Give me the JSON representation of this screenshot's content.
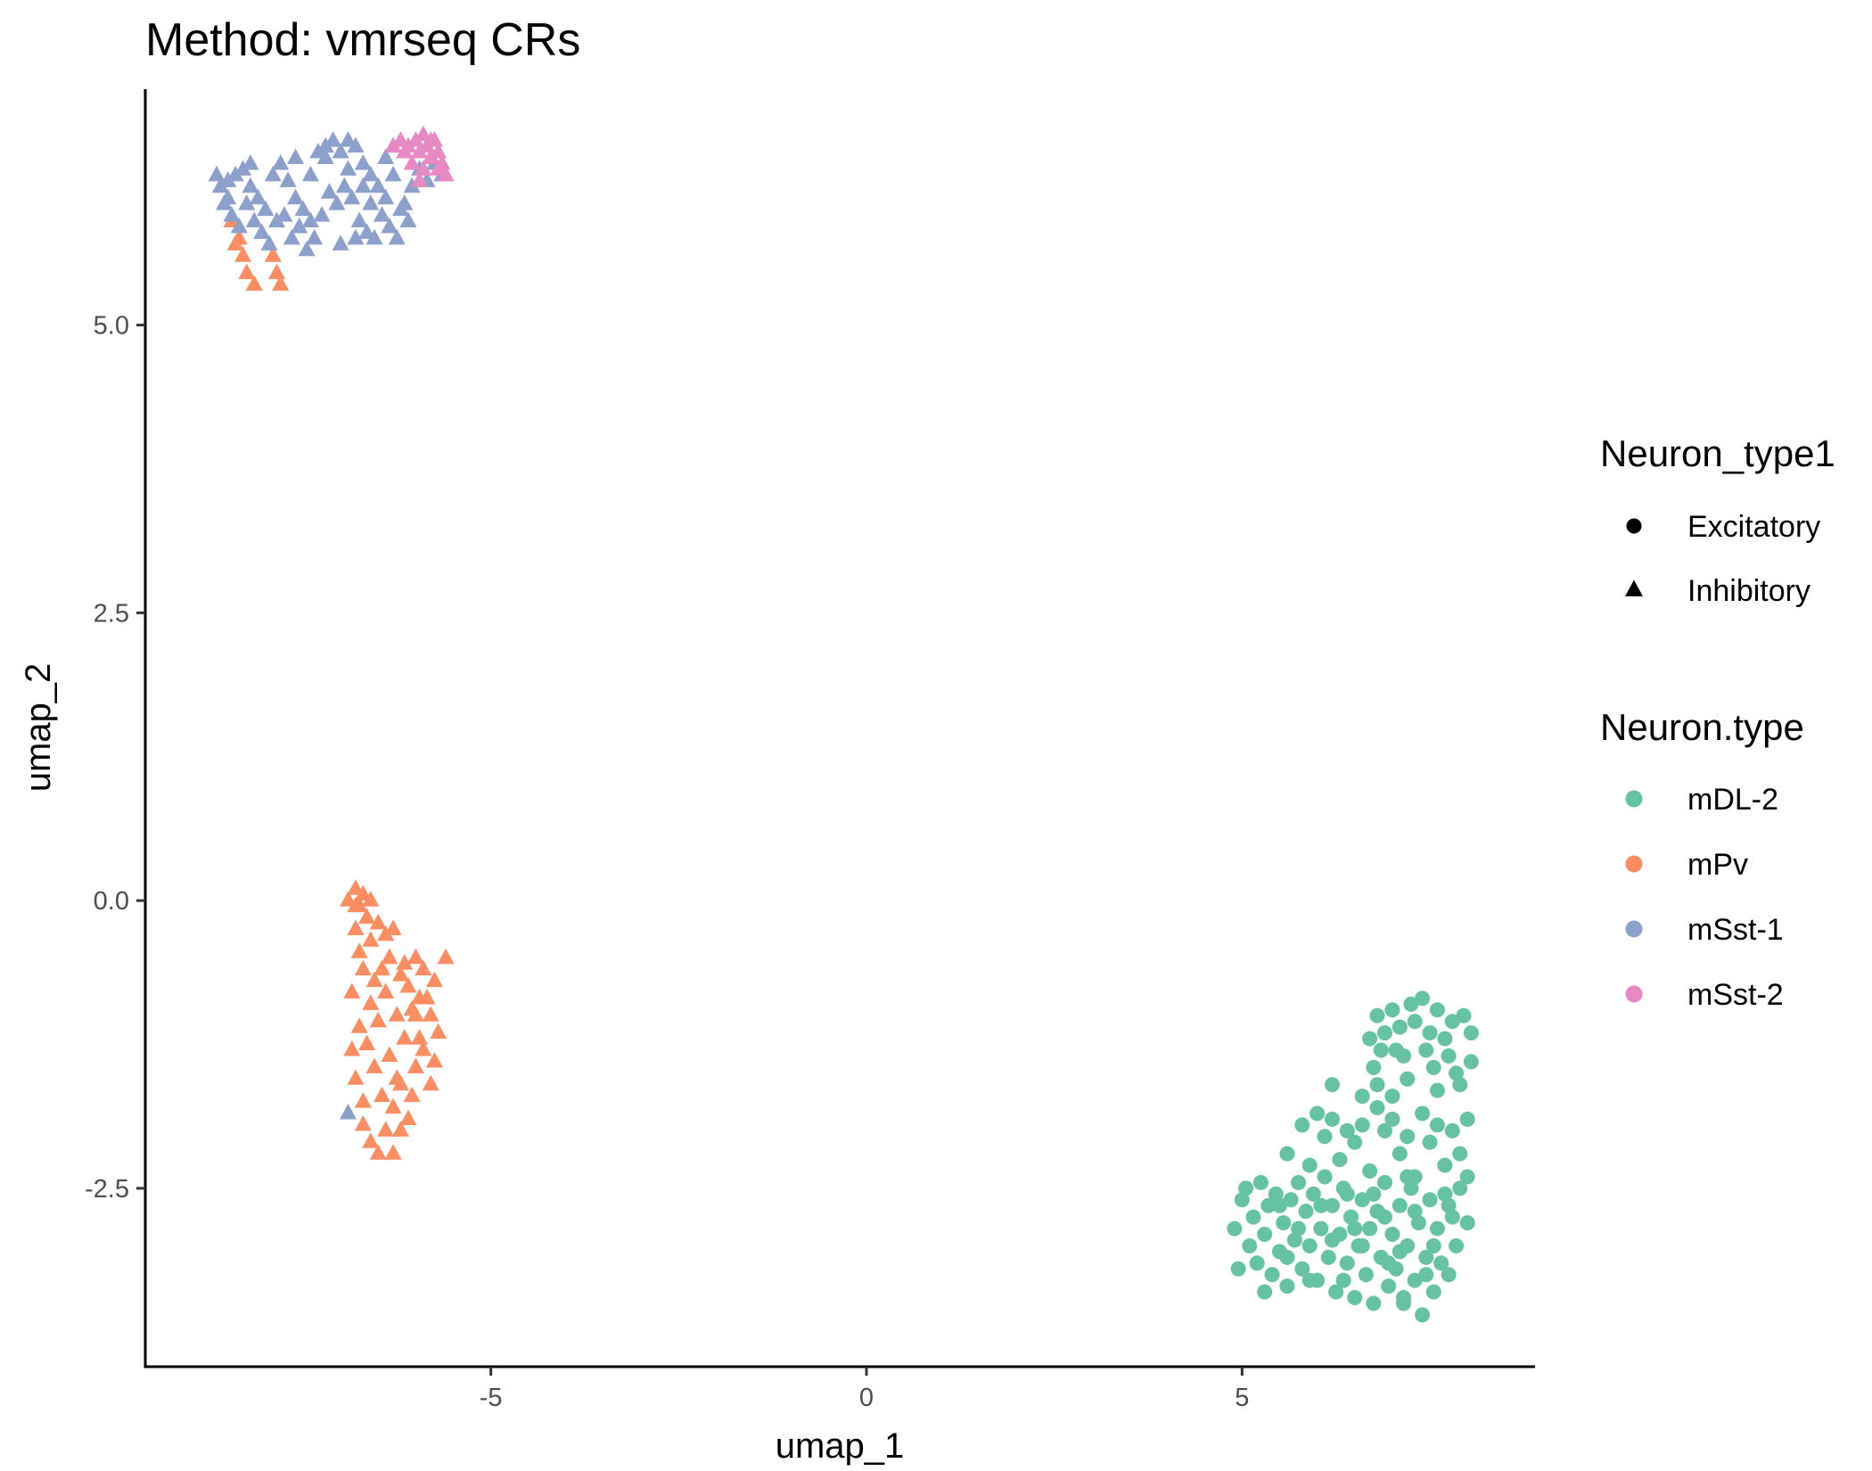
{
  "chart_data": {
    "type": "scatter",
    "title": "Method: vmrseq CRs",
    "xlabel": "umap_1",
    "ylabel": "umap_2",
    "xlim": [
      -9.6,
      8.9
    ],
    "ylim": [
      -4.05,
      7.05
    ],
    "x_ticks": [
      -5,
      0,
      5
    ],
    "x_tick_labels": [
      "-5",
      "0",
      "5"
    ],
    "y_ticks": [
      -2.5,
      0.0,
      2.5,
      5.0
    ],
    "y_tick_labels": [
      "-2.5",
      "0.0",
      "2.5",
      "5.0"
    ],
    "grid": false,
    "shape_legend": {
      "title": "Neuron_type1",
      "items": [
        {
          "label": "Excitatory",
          "shape": "circle"
        },
        {
          "label": "Inhibitory",
          "shape": "triangle"
        }
      ]
    },
    "color_legend": {
      "title": "Neuron.type",
      "items": [
        {
          "label": "mDL-2",
          "color": "#66c2a5"
        },
        {
          "label": "mPv",
          "color": "#fc8d62"
        },
        {
          "label": "mSst-1",
          "color": "#8da0cb"
        },
        {
          "label": "mSst-2",
          "color": "#e78ac3"
        }
      ]
    },
    "legend_position": "right",
    "series": [
      {
        "name": "mDL-2",
        "shape": "circle",
        "color": "#66c2a5",
        "points": [
          [
            4.9,
            -2.85
          ],
          [
            5.0,
            -2.6
          ],
          [
            5.1,
            -3.0
          ],
          [
            5.15,
            -2.75
          ],
          [
            5.2,
            -3.15
          ],
          [
            5.25,
            -2.45
          ],
          [
            5.3,
            -2.9
          ],
          [
            5.35,
            -2.65
          ],
          [
            5.4,
            -3.25
          ],
          [
            5.45,
            -2.55
          ],
          [
            5.5,
            -3.05
          ],
          [
            5.55,
            -2.8
          ],
          [
            5.6,
            -3.35
          ],
          [
            5.65,
            -2.6
          ],
          [
            5.7,
            -2.95
          ],
          [
            5.75,
            -2.45
          ],
          [
            5.8,
            -3.2
          ],
          [
            5.85,
            -2.7
          ],
          [
            5.9,
            -3.0
          ],
          [
            5.95,
            -2.55
          ],
          [
            6.0,
            -3.3
          ],
          [
            6.05,
            -2.85
          ],
          [
            6.1,
            -2.4
          ],
          [
            6.15,
            -3.1
          ],
          [
            6.2,
            -2.65
          ],
          [
            6.25,
            -3.4
          ],
          [
            6.3,
            -2.9
          ],
          [
            6.35,
            -2.5
          ],
          [
            6.4,
            -3.15
          ],
          [
            6.45,
            -2.75
          ],
          [
            6.5,
            -3.45
          ],
          [
            6.55,
            -3.0
          ],
          [
            6.6,
            -2.6
          ],
          [
            6.65,
            -3.25
          ],
          [
            6.7,
            -2.85
          ],
          [
            6.75,
            -3.5
          ],
          [
            6.8,
            -2.7
          ],
          [
            6.85,
            -3.1
          ],
          [
            6.9,
            -2.45
          ],
          [
            6.95,
            -3.35
          ],
          [
            7.0,
            -2.9
          ],
          [
            7.05,
            -3.2
          ],
          [
            7.1,
            -2.65
          ],
          [
            7.15,
            -3.45
          ],
          [
            7.2,
            -3.0
          ],
          [
            7.25,
            -2.5
          ],
          [
            7.3,
            -3.3
          ],
          [
            7.35,
            -2.8
          ],
          [
            7.4,
            -3.6
          ],
          [
            7.45,
            -3.1
          ],
          [
            7.5,
            -2.6
          ],
          [
            7.55,
            -3.4
          ],
          [
            7.6,
            -2.85
          ],
          [
            7.65,
            -3.15
          ],
          [
            7.7,
            -2.55
          ],
          [
            7.75,
            -3.25
          ],
          [
            7.8,
            -2.75
          ],
          [
            7.85,
            -3.0
          ],
          [
            7.9,
            -2.5
          ],
          [
            8.0,
            -2.8
          ],
          [
            5.6,
            -2.2
          ],
          [
            5.9,
            -2.3
          ],
          [
            6.1,
            -2.05
          ],
          [
            6.3,
            -2.25
          ],
          [
            6.5,
            -2.1
          ],
          [
            6.7,
            -2.35
          ],
          [
            6.9,
            -2.0
          ],
          [
            7.1,
            -2.2
          ],
          [
            7.3,
            -2.4
          ],
          [
            7.5,
            -2.1
          ],
          [
            7.7,
            -2.3
          ],
          [
            7.9,
            -2.2
          ],
          [
            5.8,
            -1.95
          ],
          [
            6.0,
            -1.85
          ],
          [
            6.2,
            -1.9
          ],
          [
            6.4,
            -2.0
          ],
          [
            6.6,
            -1.95
          ],
          [
            6.8,
            -1.8
          ],
          [
            7.0,
            -1.9
          ],
          [
            7.2,
            -2.05
          ],
          [
            7.4,
            -1.85
          ],
          [
            7.6,
            -1.95
          ],
          [
            7.8,
            -2.0
          ],
          [
            8.0,
            -1.9
          ],
          [
            6.2,
            -1.6
          ],
          [
            6.6,
            -1.7
          ],
          [
            6.8,
            -1.6
          ],
          [
            7.0,
            -1.7
          ],
          [
            7.2,
            -1.55
          ],
          [
            7.6,
            -1.65
          ],
          [
            7.9,
            -1.6
          ],
          [
            6.75,
            -1.45
          ],
          [
            7.15,
            -1.35
          ],
          [
            7.55,
            -1.45
          ],
          [
            7.85,
            -1.5
          ],
          [
            8.05,
            -1.4
          ],
          [
            6.7,
            -1.2
          ],
          [
            6.8,
            -1.0
          ],
          [
            6.9,
            -1.15
          ],
          [
            7.0,
            -0.95
          ],
          [
            7.1,
            -1.1
          ],
          [
            7.3,
            -1.05
          ],
          [
            7.4,
            -0.85
          ],
          [
            7.5,
            -1.15
          ],
          [
            7.6,
            -0.95
          ],
          [
            7.7,
            -1.2
          ],
          [
            7.8,
            -1.05
          ],
          [
            7.95,
            -1.0
          ],
          [
            8.05,
            -1.15
          ],
          [
            7.25,
            -0.9
          ],
          [
            6.85,
            -1.3
          ],
          [
            7.05,
            -1.3
          ],
          [
            7.45,
            -1.3
          ],
          [
            7.75,
            -1.35
          ],
          [
            4.95,
            -3.2
          ],
          [
            5.05,
            -2.5
          ],
          [
            5.3,
            -3.4
          ],
          [
            5.6,
            -3.1
          ],
          [
            5.9,
            -3.3
          ],
          [
            6.2,
            -2.95
          ],
          [
            6.4,
            -2.55
          ],
          [
            6.6,
            -3.0
          ],
          [
            6.9,
            -2.75
          ],
          [
            7.1,
            -3.05
          ],
          [
            7.3,
            -2.7
          ],
          [
            7.55,
            -3.0
          ],
          [
            7.75,
            -2.65
          ],
          [
            8.0,
            -2.4
          ],
          [
            6.5,
            -2.85
          ],
          [
            6.75,
            -2.55
          ],
          [
            6.95,
            -3.15
          ],
          [
            7.2,
            -2.4
          ],
          [
            5.5,
            -2.65
          ],
          [
            5.75,
            -2.85
          ],
          [
            6.05,
            -2.65
          ],
          [
            6.35,
            -3.3
          ],
          [
            7.15,
            -3.5
          ],
          [
            7.45,
            -3.25
          ]
        ]
      },
      {
        "name": "mPv",
        "shape": "triangle",
        "color": "#fc8d62",
        "points": [
          [
            -6.8,
            0.1
          ],
          [
            -6.75,
            -0.05
          ],
          [
            -6.7,
            0.05
          ],
          [
            -6.65,
            -0.15
          ],
          [
            -6.8,
            -0.25
          ],
          [
            -6.6,
            -0.35
          ],
          [
            -6.75,
            -0.45
          ],
          [
            -6.5,
            -0.2
          ],
          [
            -6.4,
            -0.3
          ],
          [
            -6.3,
            -0.25
          ],
          [
            -6.35,
            -0.5
          ],
          [
            -6.2,
            -0.65
          ],
          [
            -6.1,
            -0.75
          ],
          [
            -6.0,
            -0.5
          ],
          [
            -5.9,
            -0.6
          ],
          [
            -5.85,
            -0.85
          ],
          [
            -5.8,
            -1.0
          ],
          [
            -5.75,
            -0.7
          ],
          [
            -5.6,
            -0.5
          ],
          [
            -5.7,
            -1.15
          ],
          [
            -5.75,
            -1.4
          ],
          [
            -5.8,
            -1.6
          ],
          [
            -5.9,
            -1.3
          ],
          [
            -6.0,
            -1.45
          ],
          [
            -6.05,
            -1.7
          ],
          [
            -6.1,
            -1.9
          ],
          [
            -6.2,
            -1.6
          ],
          [
            -6.3,
            -1.8
          ],
          [
            -6.4,
            -2.0
          ],
          [
            -6.5,
            -2.2
          ],
          [
            -6.6,
            -2.1
          ],
          [
            -6.7,
            -1.95
          ],
          [
            -6.3,
            -2.2
          ],
          [
            -6.2,
            -2.0
          ],
          [
            -6.45,
            -1.7
          ],
          [
            -6.55,
            -1.45
          ],
          [
            -6.65,
            -1.25
          ],
          [
            -6.75,
            -1.1
          ],
          [
            -6.85,
            -1.3
          ],
          [
            -6.8,
            -1.55
          ],
          [
            -6.7,
            -1.75
          ],
          [
            -6.6,
            -0.9
          ],
          [
            -6.5,
            -1.05
          ],
          [
            -6.4,
            -0.8
          ],
          [
            -6.25,
            -1.0
          ],
          [
            -6.15,
            -1.2
          ],
          [
            -6.0,
            -1.0
          ],
          [
            -5.95,
            -1.2
          ],
          [
            -6.35,
            -1.35
          ],
          [
            -6.25,
            -1.55
          ],
          [
            -6.45,
            -0.6
          ],
          [
            -6.55,
            -0.7
          ],
          [
            -6.7,
            -0.6
          ],
          [
            -6.85,
            -0.8
          ],
          [
            -6.8,
            -0.05
          ],
          [
            -6.9,
            0.0
          ],
          [
            -6.6,
            0.0
          ],
          [
            -5.95,
            -0.85
          ],
          [
            -6.05,
            -0.95
          ],
          [
            -6.15,
            -0.55
          ],
          [
            -8.45,
            5.9
          ],
          [
            -8.35,
            5.75
          ],
          [
            -8.3,
            5.6
          ],
          [
            -8.25,
            5.45
          ],
          [
            -8.15,
            5.35
          ],
          [
            -7.9,
            5.6
          ],
          [
            -7.85,
            5.45
          ],
          [
            -7.8,
            5.35
          ],
          [
            -8.4,
            5.7
          ]
        ]
      },
      {
        "name": "mSst-1",
        "shape": "triangle",
        "color": "#8da0cb",
        "points": [
          [
            -8.6,
            6.2
          ],
          [
            -8.5,
            6.25
          ],
          [
            -8.4,
            6.3
          ],
          [
            -8.3,
            6.35
          ],
          [
            -8.2,
            6.2
          ],
          [
            -8.1,
            6.1
          ],
          [
            -8.0,
            6.0
          ],
          [
            -7.9,
            6.3
          ],
          [
            -7.8,
            6.4
          ],
          [
            -7.7,
            6.25
          ],
          [
            -7.6,
            6.1
          ],
          [
            -7.5,
            6.0
          ],
          [
            -7.4,
            5.9
          ],
          [
            -7.3,
            6.5
          ],
          [
            -7.2,
            6.55
          ],
          [
            -7.1,
            6.6
          ],
          [
            -7.0,
            6.5
          ],
          [
            -6.9,
            6.6
          ],
          [
            -6.8,
            6.55
          ],
          [
            -6.7,
            6.4
          ],
          [
            -6.6,
            6.3
          ],
          [
            -6.5,
            6.2
          ],
          [
            -6.4,
            6.1
          ],
          [
            -6.3,
            6.3
          ],
          [
            -6.2,
            6.0
          ],
          [
            -6.1,
            5.9
          ],
          [
            -8.55,
            6.05
          ],
          [
            -8.45,
            5.95
          ],
          [
            -8.35,
            5.85
          ],
          [
            -8.25,
            6.05
          ],
          [
            -8.15,
            5.9
          ],
          [
            -8.05,
            5.8
          ],
          [
            -7.95,
            5.7
          ],
          [
            -7.85,
            5.9
          ],
          [
            -7.75,
            5.95
          ],
          [
            -7.65,
            5.75
          ],
          [
            -7.55,
            5.85
          ],
          [
            -7.45,
            5.65
          ],
          [
            -7.35,
            5.75
          ],
          [
            -7.25,
            5.95
          ],
          [
            -7.15,
            6.15
          ],
          [
            -7.05,
            6.05
          ],
          [
            -6.95,
            6.2
          ],
          [
            -6.85,
            6.1
          ],
          [
            -6.75,
            5.9
          ],
          [
            -6.65,
            5.8
          ],
          [
            -6.55,
            5.75
          ],
          [
            -6.45,
            5.95
          ],
          [
            -6.35,
            5.85
          ],
          [
            -6.25,
            5.75
          ],
          [
            -6.15,
            6.05
          ],
          [
            -6.05,
            6.2
          ],
          [
            -5.95,
            6.35
          ],
          [
            -5.85,
            6.25
          ],
          [
            -5.75,
            6.4
          ],
          [
            -5.65,
            6.3
          ],
          [
            -8.65,
            6.3
          ],
          [
            -8.5,
            6.1
          ],
          [
            -8.2,
            6.4
          ],
          [
            -7.6,
            6.45
          ],
          [
            -7.2,
            6.45
          ],
          [
            -6.9,
            6.35
          ],
          [
            -6.6,
            6.05
          ],
          [
            -6.3,
            6.55
          ],
          [
            -6.7,
            6.2
          ],
          [
            -7.4,
            6.3
          ],
          [
            -6.8,
            5.75
          ],
          [
            -6.9,
            -1.85
          ],
          [
            -7.0,
            5.7
          ],
          [
            -6.4,
            6.45
          ]
        ]
      },
      {
        "name": "mSst-2",
        "shape": "triangle",
        "color": "#e78ac3",
        "points": [
          [
            -6.3,
            6.55
          ],
          [
            -6.2,
            6.6
          ],
          [
            -6.1,
            6.55
          ],
          [
            -6.0,
            6.6
          ],
          [
            -5.95,
            6.5
          ],
          [
            -5.9,
            6.65
          ],
          [
            -5.85,
            6.55
          ],
          [
            -5.8,
            6.45
          ],
          [
            -5.75,
            6.6
          ],
          [
            -5.7,
            6.5
          ],
          [
            -5.65,
            6.4
          ],
          [
            -5.6,
            6.3
          ],
          [
            -5.9,
            6.35
          ],
          [
            -6.05,
            6.4
          ],
          [
            -5.8,
            6.6
          ],
          [
            -5.7,
            6.35
          ],
          [
            -6.15,
            6.5
          ],
          [
            -5.95,
            6.25
          ]
        ]
      }
    ]
  }
}
